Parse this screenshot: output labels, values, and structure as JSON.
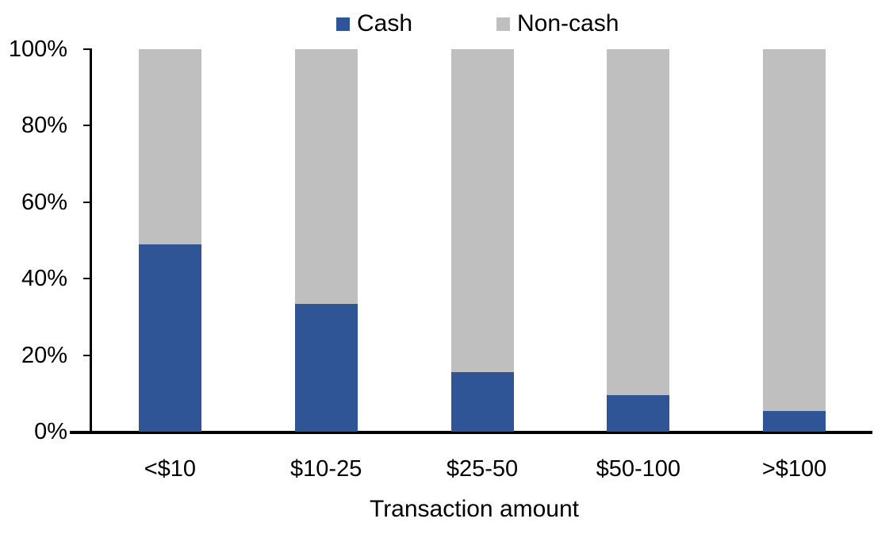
{
  "chart_data": {
    "type": "bar",
    "stacked": true,
    "stack_total": 100,
    "title": "",
    "xlabel": "Transaction amount",
    "ylabel": "",
    "ylim": [
      0,
      100
    ],
    "yticks": [
      {
        "label": "0%",
        "value": 0
      },
      {
        "label": "20%",
        "value": 20
      },
      {
        "label": "40%",
        "value": 40
      },
      {
        "label": "60%",
        "value": 60
      },
      {
        "label": "80%",
        "value": 80
      },
      {
        "label": "100%",
        "value": 100
      }
    ],
    "categories": [
      "<$10",
      "$10-25",
      "$25-50",
      "$50-100",
      ">$100"
    ],
    "series": [
      {
        "name": "Cash",
        "color": "#2F5597",
        "values": [
          49,
          33.5,
          15.5,
          9.5,
          5.5
        ]
      },
      {
        "name": "Non-cash",
        "color": "#BFBFBF",
        "values": [
          51,
          66.5,
          84.5,
          90.5,
          94.5
        ]
      }
    ],
    "legend_position": "top-center",
    "grid": false,
    "axis_color": "#000000",
    "text_color": "#000000",
    "background_color": "#FFFFFF"
  },
  "legend": {
    "cash_label": "Cash",
    "noncash_label": "Non-cash"
  }
}
